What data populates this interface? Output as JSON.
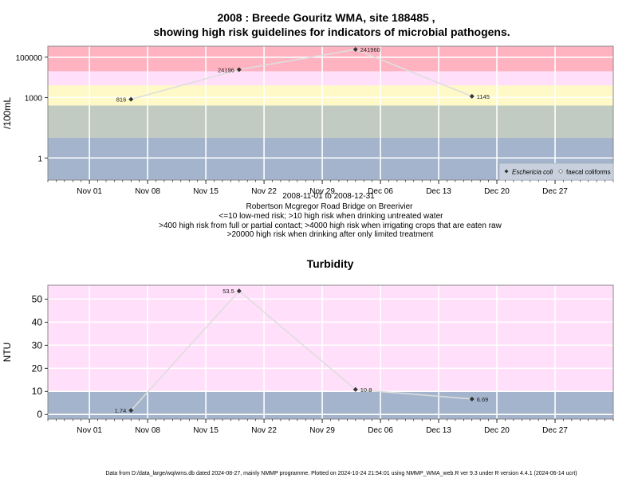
{
  "chart_data": [
    {
      "type": "line",
      "title_line1": "2008 : Breede Gouritz WMA, site 188485 ,",
      "title_line2": "showing high risk guidelines for indicators of microbial pathogens.",
      "ylabel": "/100mL",
      "yscale": "log10",
      "ylim": [
        0.08,
        350000
      ],
      "y_ticks": [
        {
          "value": 1,
          "label": "1"
        },
        {
          "value": 1000,
          "label": "1000"
        },
        {
          "value": 100000,
          "label": "100000"
        }
      ],
      "xlim": [
        "2008-10-27",
        "2009-01-03"
      ],
      "x_ticks": [
        {
          "date": "2008-11-01",
          "label": "Nov 01"
        },
        {
          "date": "2008-11-08",
          "label": "Nov 08"
        },
        {
          "date": "2008-11-15",
          "label": "Nov 15"
        },
        {
          "date": "2008-11-22",
          "label": "Nov 22"
        },
        {
          "date": "2008-11-29",
          "label": "Nov 29"
        },
        {
          "date": "2008-12-06",
          "label": "Dec 06"
        },
        {
          "date": "2008-12-13",
          "label": "Dec 13"
        },
        {
          "date": "2008-12-20",
          "label": "Dec 20"
        },
        {
          "date": "2008-12-27",
          "label": "Dec 27"
        }
      ],
      "bands": [
        {
          "from": 0.08,
          "to": 10,
          "color": "#a3b4cc"
        },
        {
          "from": 10,
          "to": 400,
          "color": "#c2cbc2"
        },
        {
          "from": 400,
          "to": 4000,
          "color": "#fef9c7"
        },
        {
          "from": 4000,
          "to": 20000,
          "color": "#ffdff9"
        },
        {
          "from": 20000,
          "to": 350000,
          "color": "#ffb3c1"
        }
      ],
      "series": [
        {
          "name": "Eschericia coli",
          "points": [
            {
              "x": "2008-11-06",
              "y": 816,
              "label": "816"
            },
            {
              "x": "2008-11-19",
              "y": 24196,
              "label": "24196"
            },
            {
              "x": "2008-12-03",
              "y": 241960,
              "label": "241960"
            },
            {
              "x": "2008-12-17",
              "y": 1145,
              "label": "1145"
            }
          ]
        }
      ],
      "legend_entries": [
        "Eschericia coli",
        "faecal coliforms"
      ],
      "legend_position": "bottom-right",
      "subtitle_lines": [
        "2008-11-01 to 2008-12-31",
        "Robertson Mcgregor Road Bridge on Breerivier",
        "<=10 low-med risk; >10 high risk when drinking untreated water",
        ">400 high risk from full or partial contact; >4000 high risk when irrigating crops that are eaten raw",
        ">20000 high risk when drinking after only limited treatment"
      ]
    },
    {
      "type": "line",
      "title": "Turbidity",
      "ylabel": "NTU",
      "yscale": "linear",
      "ylim": [
        -2,
        56
      ],
      "y_ticks": [
        {
          "value": 0,
          "label": "0"
        },
        {
          "value": 10,
          "label": "10"
        },
        {
          "value": 20,
          "label": "20"
        },
        {
          "value": 30,
          "label": "30"
        },
        {
          "value": 40,
          "label": "40"
        },
        {
          "value": 50,
          "label": "50"
        }
      ],
      "xlim": [
        "2008-10-27",
        "2009-01-03"
      ],
      "x_ticks": [
        {
          "date": "2008-11-01",
          "label": "Nov 01"
        },
        {
          "date": "2008-11-08",
          "label": "Nov 08"
        },
        {
          "date": "2008-11-15",
          "label": "Nov 15"
        },
        {
          "date": "2008-11-22",
          "label": "Nov 22"
        },
        {
          "date": "2008-11-29",
          "label": "Nov 29"
        },
        {
          "date": "2008-12-06",
          "label": "Dec 06"
        },
        {
          "date": "2008-12-13",
          "label": "Dec 13"
        },
        {
          "date": "2008-12-20",
          "label": "Dec 20"
        },
        {
          "date": "2008-12-27",
          "label": "Dec 27"
        }
      ],
      "bands": [
        {
          "from": -2,
          "to": 10,
          "color": "#a3b4cc"
        },
        {
          "from": 10,
          "to": 56,
          "color": "#ffdff9"
        }
      ],
      "series": [
        {
          "points": [
            {
              "x": "2008-11-06",
              "y": 1.74,
              "label": "1.74"
            },
            {
              "x": "2008-11-19",
              "y": 53.5,
              "label": "53.5"
            },
            {
              "x": "2008-12-03",
              "y": 10.8,
              "label": "10.8"
            },
            {
              "x": "2008-12-17",
              "y": 6.69,
              "label": "6.69"
            }
          ]
        }
      ]
    }
  ],
  "footer": "Data from D:/data_large/wq/wms.db dated 2024-08-27, mainly NMMP programme. Plotted on 2024-10-24 21:54:01 using NMMP_WMA_web.R ver 9.3 under R version 4.4.1 (2024-06-14 ucrt)"
}
